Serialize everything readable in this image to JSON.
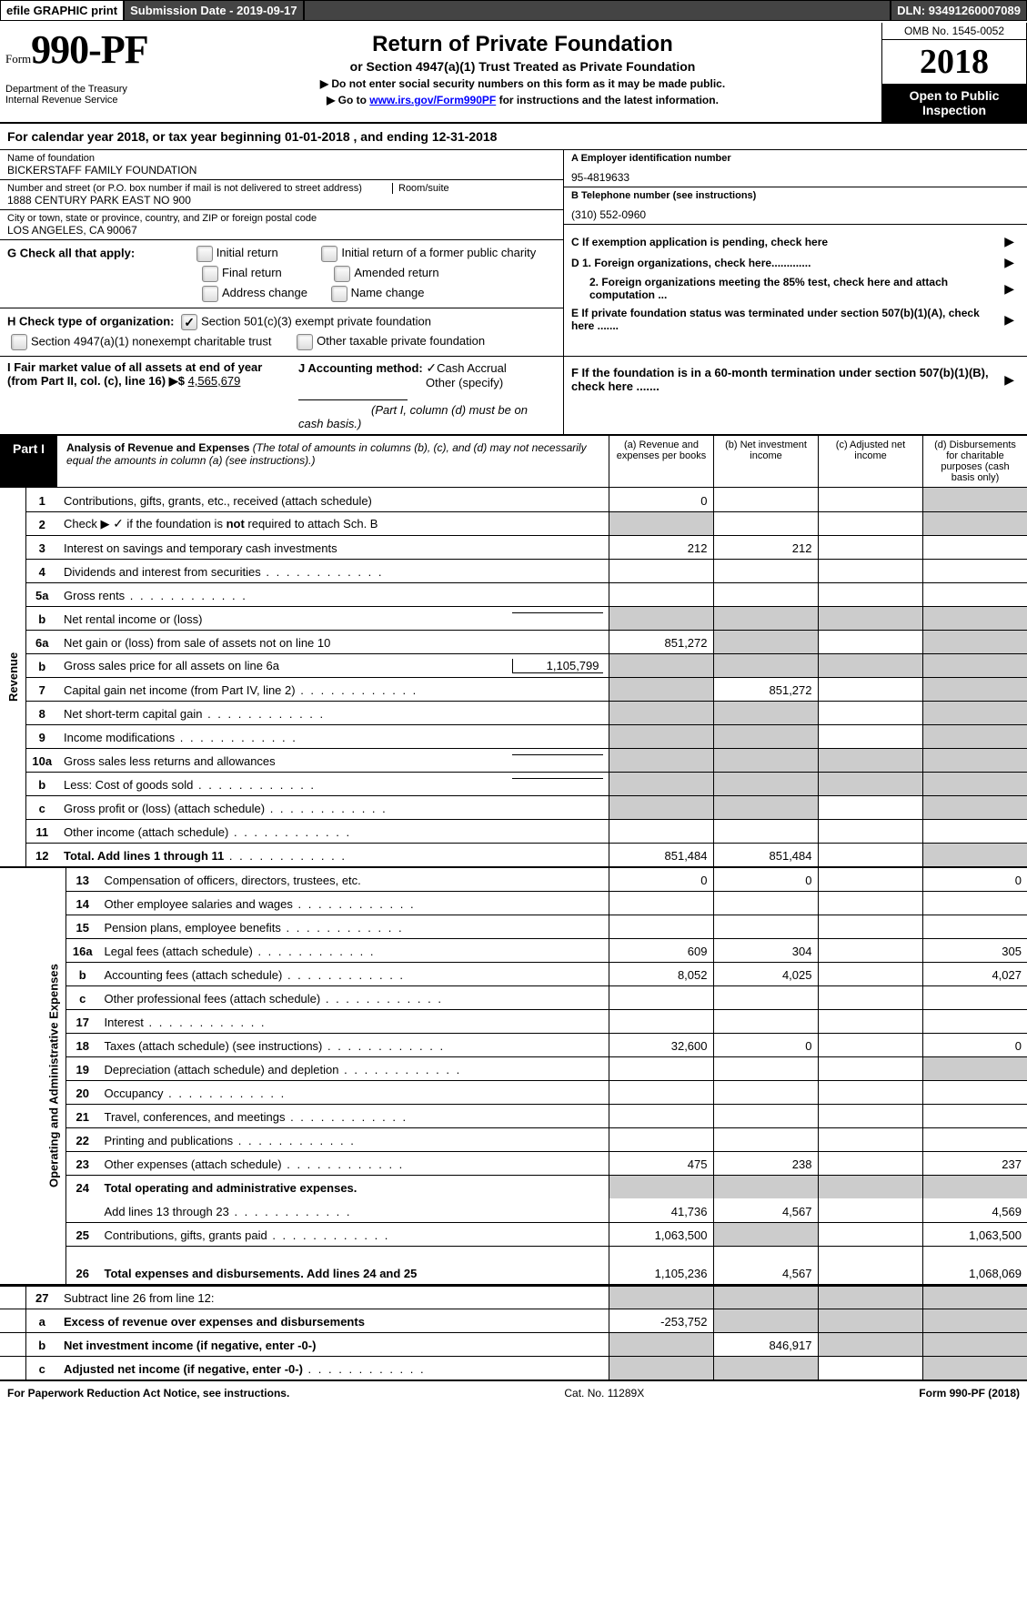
{
  "topbar": {
    "efile": "efile GRAPHIC print",
    "subdate_label": "Submission Date - ",
    "subdate": "2019-09-17",
    "dln_label": "DLN: ",
    "dln": "93491260007089"
  },
  "header": {
    "form_prefix": "Form",
    "form_no": "990-PF",
    "dept": "Department of the Treasury\nInternal Revenue Service",
    "title": "Return of Private Foundation",
    "subtitle": "or Section 4947(a)(1) Trust Treated as Private Foundation",
    "note1": "▶ Do not enter social security numbers on this form as it may be made public.",
    "note2_pre": "▶ Go to ",
    "note2_link": "www.irs.gov/Form990PF",
    "note2_post": " for instructions and the latest information.",
    "omb": "OMB No. 1545-0052",
    "year": "2018",
    "inspect": "Open to Public Inspection"
  },
  "calyear": "For calendar year 2018, or tax year beginning 01-01-2018                            , and ending 12-31-2018",
  "meta": {
    "name_lbl": "Name of foundation",
    "name": "BICKERSTAFF FAMILY FOUNDATION",
    "addr_lbl": "Number and street (or P.O. box number if mail is not delivered to street address)",
    "addr": "1888 CENTURY PARK EAST NO 900",
    "room_lbl": "Room/suite",
    "city_lbl": "City or town, state or province, country, and ZIP or foreign postal code",
    "city": "LOS ANGELES, CA  90067",
    "A_lbl": "A Employer identification number",
    "A": "95-4819633",
    "B_lbl": "B Telephone number (see instructions)",
    "B": "(310) 552-0960",
    "C": "C If exemption application is pending, check here",
    "D1": "D 1. Foreign organizations, check here.............",
    "D2": "2. Foreign organizations meeting the 85% test, check here and attach computation ...",
    "E": "E If private foundation status was terminated under section 507(b)(1)(A), check here .......",
    "F": "F If the foundation is in a 60-month termination under section 507(b)(1)(B), check here ......."
  },
  "G": {
    "label": "G Check all that apply:",
    "opts": [
      "Initial return",
      "Initial return of a former public charity",
      "Final return",
      "Amended return",
      "Address change",
      "Name change"
    ]
  },
  "H": {
    "label": "H Check type of organization:",
    "o1": "Section 501(c)(3) exempt private foundation",
    "o2": "Section 4947(a)(1) nonexempt charitable trust",
    "o3": "Other taxable private foundation"
  },
  "I": {
    "label": "I Fair market value of all assets at end of year (from Part II, col. (c), line 16) ▶$",
    "val": "4,565,679"
  },
  "J": {
    "label": "J Accounting method:",
    "o1": "Cash",
    "o2": "Accrual",
    "o3": "Other (specify)",
    "note": "(Part I, column (d) must be on cash basis.)"
  },
  "part1": {
    "label": "Part I",
    "title": "Analysis of Revenue and Expenses",
    "title_note": "(The total of amounts in columns (b), (c), and (d) may not necessarily equal the amounts in column (a) (see instructions).)",
    "cols": {
      "a": "(a)    Revenue and expenses per books",
      "b": "(b)    Net investment income",
      "c": "(c)    Adjusted net income",
      "d": "(d)    Disbursements for charitable purposes (cash basis only)"
    }
  },
  "side_rev": "Revenue",
  "side_exp": "Operating and Administrative Expenses",
  "rows": [
    {
      "n": "1",
      "desc": "Contributions, gifts, grants, etc., received (attach schedule)",
      "a": "0",
      "d_shade": true
    },
    {
      "n": "2",
      "desc": "Check ▶ [✓] if the foundation is not required to attach Sch. B",
      "ck": true,
      "a_shade": true,
      "d_shade": true
    },
    {
      "n": "3",
      "desc": "Interest on savings and temporary cash investments",
      "a": "212",
      "b": "212"
    },
    {
      "n": "4",
      "desc": "Dividends and interest from securities",
      "dots": true
    },
    {
      "n": "5a",
      "desc": "Gross rents",
      "dots": true
    },
    {
      "n": "b",
      "desc": "Net rental income or (loss)",
      "inline": "",
      "a_shade": true,
      "b_shade": true,
      "c_shade": true,
      "d_shade": true
    },
    {
      "n": "6a",
      "desc": "Net gain or (loss) from sale of assets not on line 10",
      "a": "851,272",
      "b_shade": true,
      "d_shade": true
    },
    {
      "n": "b",
      "desc": "Gross sales price for all assets on line 6a",
      "inline": "1,105,799",
      "a_shade": true,
      "b_shade": true,
      "c_shade": true,
      "d_shade": true
    },
    {
      "n": "7",
      "desc": "Capital gain net income (from Part IV, line 2)",
      "dots": true,
      "a_shade": true,
      "b": "851,272",
      "d_shade": true
    },
    {
      "n": "8",
      "desc": "Net short-term capital gain",
      "dots": true,
      "a_shade": true,
      "b_shade": true,
      "d_shade": true
    },
    {
      "n": "9",
      "desc": "Income modifications",
      "dots": true,
      "a_shade": true,
      "b_shade": true,
      "d_shade": true
    },
    {
      "n": "10a",
      "desc": "Gross sales less returns and allowances",
      "inline": "",
      "a_shade": true,
      "b_shade": true,
      "c_shade": true,
      "d_shade": true
    },
    {
      "n": "b",
      "desc": "Less: Cost of goods sold",
      "dots": true,
      "inline": "",
      "a_shade": true,
      "b_shade": true,
      "c_shade": true,
      "d_shade": true
    },
    {
      "n": "c",
      "desc": "Gross profit or (loss) (attach schedule)",
      "dots": true,
      "a_shade": true,
      "b_shade": true,
      "d_shade": true
    },
    {
      "n": "11",
      "desc": "Other income (attach schedule)",
      "dots": true
    },
    {
      "n": "12",
      "desc": "Total. Add lines 1 through 11",
      "dots": true,
      "bold": true,
      "a": "851,484",
      "b": "851,484",
      "d_shade": true
    }
  ],
  "rows_exp": [
    {
      "n": "13",
      "desc": "Compensation of officers, directors, trustees, etc.",
      "a": "0",
      "b": "0",
      "d": "0"
    },
    {
      "n": "14",
      "desc": "Other employee salaries and wages",
      "dots": true
    },
    {
      "n": "15",
      "desc": "Pension plans, employee benefits",
      "dots": true
    },
    {
      "n": "16a",
      "desc": "Legal fees (attach schedule)",
      "dots": true,
      "a": "609",
      "b": "304",
      "d": "305"
    },
    {
      "n": "b",
      "desc": "Accounting fees (attach schedule)",
      "dots": true,
      "a": "8,052",
      "b": "4,025",
      "d": "4,027"
    },
    {
      "n": "c",
      "desc": "Other professional fees (attach schedule)",
      "dots": true
    },
    {
      "n": "17",
      "desc": "Interest",
      "dots": true
    },
    {
      "n": "18",
      "desc": "Taxes (attach schedule) (see instructions)",
      "dots": true,
      "a": "32,600",
      "b": "0",
      "d": "0"
    },
    {
      "n": "19",
      "desc": "Depreciation (attach schedule) and depletion",
      "dots": true,
      "d_shade": true
    },
    {
      "n": "20",
      "desc": "Occupancy",
      "dots": true
    },
    {
      "n": "21",
      "desc": "Travel, conferences, and meetings",
      "dots": true
    },
    {
      "n": "22",
      "desc": "Printing and publications",
      "dots": true
    },
    {
      "n": "23",
      "desc": "Other expenses (attach schedule)",
      "dots": true,
      "a": "475",
      "b": "238",
      "d": "237"
    },
    {
      "n": "24",
      "desc": "Total operating and administrative expenses.",
      "bold": true,
      "a_shade": true,
      "b_shade": true,
      "c_shade": true,
      "d_shade": true,
      "noborder": true
    },
    {
      "n": "",
      "desc": "Add lines 13 through 23",
      "dots": true,
      "a": "41,736",
      "b": "4,567",
      "d": "4,569"
    },
    {
      "n": "25",
      "desc": "Contributions, gifts, grants paid",
      "dots": true,
      "a": "1,063,500",
      "b_shade": true,
      "d": "1,063,500"
    },
    {
      "n": "26",
      "desc": "Total expenses and disbursements. Add lines 24 and 25",
      "bold": true,
      "a": "1,105,236",
      "b": "4,567",
      "d": "1,068,069",
      "tall": true
    }
  ],
  "rows_net": [
    {
      "n": "27",
      "desc": "Subtract line 26 from line 12:",
      "a_shade": true,
      "b_shade": true,
      "c_shade": true,
      "d_shade": true
    },
    {
      "n": "a",
      "desc": "Excess of revenue over expenses and disbursements",
      "bold": true,
      "a": "-253,752",
      "b_shade": true,
      "c_shade": true,
      "d_shade": true
    },
    {
      "n": "b",
      "desc": "Net investment income (if negative, enter -0-)",
      "bold": true,
      "a_shade": true,
      "b": "846,917",
      "c_shade": true,
      "d_shade": true
    },
    {
      "n": "c",
      "desc": "Adjusted net income (if negative, enter -0-)",
      "bold": true,
      "dots": true,
      "a_shade": true,
      "b_shade": true,
      "d_shade": true
    }
  ],
  "footer": {
    "left": "For Paperwork Reduction Act Notice, see instructions.",
    "mid": "Cat. No. 11289X",
    "right": "Form 990-PF (2018)"
  }
}
